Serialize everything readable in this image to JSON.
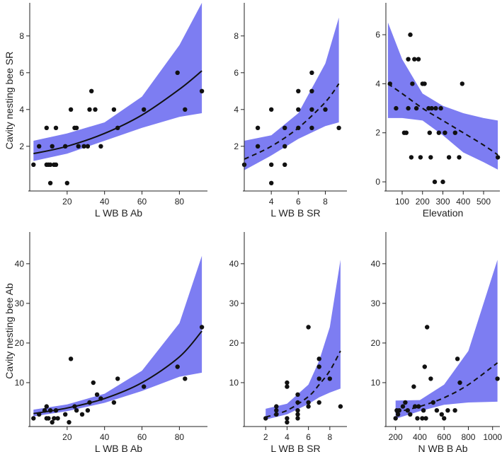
{
  "figure": {
    "row_labels": [
      "Cavity nesting bee SR",
      "Cavity nesting bee Ab"
    ]
  },
  "chart_data": [
    {
      "type": "scatter",
      "panel": "top-left",
      "xlabel": "L WB B Ab",
      "ylabel": "Cavity nesting bee SR",
      "xlim": [
        0,
        95
      ],
      "ylim": [
        -0.2,
        9.8
      ],
      "xticks": [
        20,
        40,
        60,
        80
      ],
      "yticks": [
        2,
        4,
        6,
        8
      ],
      "fit": {
        "style": "solid",
        "x": [
          2,
          20,
          40,
          60,
          80,
          92
        ],
        "y": [
          1.6,
          2.0,
          2.7,
          3.7,
          5.1,
          6.1
        ]
      },
      "band": {
        "x": [
          2,
          20,
          40,
          60,
          80,
          92
        ],
        "lower": [
          1.2,
          1.6,
          2.3,
          3.0,
          3.6,
          3.8
        ],
        "upper": [
          2.3,
          2.7,
          3.3,
          4.7,
          7.5,
          9.8
        ]
      },
      "points": [
        [
          2,
          1
        ],
        [
          5,
          2
        ],
        [
          9,
          3
        ],
        [
          9,
          1
        ],
        [
          10,
          1
        ],
        [
          11,
          0
        ],
        [
          11,
          1
        ],
        [
          12,
          2
        ],
        [
          13,
          1
        ],
        [
          14,
          1
        ],
        [
          14,
          3
        ],
        [
          19,
          2
        ],
        [
          20,
          0
        ],
        [
          22,
          4
        ],
        [
          24,
          3
        ],
        [
          25,
          3
        ],
        [
          26,
          2
        ],
        [
          29,
          2
        ],
        [
          31,
          2
        ],
        [
          32,
          4
        ],
        [
          33,
          5
        ],
        [
          35,
          4
        ],
        [
          38,
          2
        ],
        [
          45,
          4
        ],
        [
          47,
          3
        ],
        [
          61,
          4
        ],
        [
          79,
          6
        ],
        [
          83,
          4
        ],
        [
          92,
          5
        ]
      ]
    },
    {
      "type": "scatter",
      "panel": "top-middle",
      "xlabel": "L WB B SR",
      "ylabel": "",
      "xlim": [
        2,
        9.6
      ],
      "ylim": [
        -0.2,
        9.8
      ],
      "xticks": [
        4,
        6,
        8
      ],
      "yticks": [
        2,
        4,
        6,
        8
      ],
      "fit": {
        "style": "dashed",
        "x": [
          2,
          4,
          6,
          8,
          9
        ],
        "y": [
          1.3,
          2.0,
          3.0,
          4.4,
          5.4
        ]
      },
      "band": {
        "x": [
          2,
          4,
          6,
          8,
          9
        ],
        "lower": [
          0.7,
          1.5,
          2.4,
          3.1,
          3.3
        ],
        "upper": [
          2.3,
          2.6,
          3.8,
          6.5,
          9.0
        ]
      },
      "points": [
        [
          2,
          1
        ],
        [
          3,
          2
        ],
        [
          3,
          3
        ],
        [
          4,
          4
        ],
        [
          4,
          1
        ],
        [
          4,
          0
        ],
        [
          5,
          3
        ],
        [
          5,
          2
        ],
        [
          5,
          1
        ],
        [
          6,
          3
        ],
        [
          6,
          4
        ],
        [
          6,
          5
        ],
        [
          7,
          5
        ],
        [
          7,
          4
        ],
        [
          7,
          6
        ],
        [
          7,
          3
        ],
        [
          8,
          4
        ],
        [
          9,
          3
        ]
      ]
    },
    {
      "type": "scatter",
      "panel": "top-right",
      "xlabel": "Elevation",
      "ylabel": "",
      "xlim": [
        20,
        580
      ],
      "ylim": [
        -0.2,
        7.3
      ],
      "xticks": [
        100,
        200,
        300,
        400,
        500
      ],
      "yticks": [
        0,
        2,
        4,
        6
      ],
      "fit": {
        "style": "dashed",
        "x": [
          30,
          100,
          200,
          300,
          400,
          500,
          570
        ],
        "y": [
          4.0,
          3.6,
          3.0,
          2.5,
          2.0,
          1.5,
          1.1
        ]
      },
      "band": {
        "x": [
          30,
          100,
          200,
          300,
          400,
          500,
          570
        ],
        "lower": [
          2.6,
          2.6,
          2.5,
          1.9,
          1.2,
          0.8,
          0.5
        ],
        "upper": [
          6.5,
          5.0,
          3.6,
          3.1,
          2.8,
          2.6,
          2.5
        ]
      },
      "points": [
        [
          40,
          4
        ],
        [
          70,
          3
        ],
        [
          110,
          2
        ],
        [
          120,
          2
        ],
        [
          130,
          5
        ],
        [
          130,
          3
        ],
        [
          140,
          6
        ],
        [
          145,
          1
        ],
        [
          150,
          4
        ],
        [
          160,
          5
        ],
        [
          170,
          3
        ],
        [
          180,
          5
        ],
        [
          190,
          1
        ],
        [
          200,
          4
        ],
        [
          210,
          4
        ],
        [
          230,
          3
        ],
        [
          235,
          2
        ],
        [
          240,
          1
        ],
        [
          245,
          3
        ],
        [
          260,
          0
        ],
        [
          265,
          3
        ],
        [
          280,
          2
        ],
        [
          290,
          3
        ],
        [
          300,
          0
        ],
        [
          310,
          2
        ],
        [
          330,
          1
        ],
        [
          360,
          2
        ],
        [
          380,
          1
        ],
        [
          395,
          4
        ],
        [
          570,
          1
        ]
      ]
    },
    {
      "type": "scatter",
      "panel": "bottom-left",
      "xlabel": "L WB B Ab",
      "ylabel": "Cavity nesting bee Ab",
      "xlim": [
        0,
        95
      ],
      "ylim": [
        0,
        48
      ],
      "xticks": [
        20,
        40,
        60,
        80
      ],
      "yticks": [
        10,
        20,
        30,
        40
      ],
      "fit": {
        "style": "solid",
        "x": [
          2,
          20,
          40,
          60,
          80,
          92
        ],
        "y": [
          2.2,
          3.6,
          6.0,
          10.0,
          16.5,
          23.0
        ]
      },
      "band": {
        "x": [
          2,
          20,
          40,
          60,
          80,
          92
        ],
        "lower": [
          1.5,
          2.8,
          4.9,
          7.9,
          11.5,
          12.5
        ],
        "upper": [
          3.2,
          4.5,
          7.2,
          13.0,
          25.0,
          42.0
        ]
      },
      "points": [
        [
          2,
          1
        ],
        [
          5,
          2
        ],
        [
          8,
          3
        ],
        [
          9,
          4
        ],
        [
          9,
          1
        ],
        [
          10,
          1
        ],
        [
          11,
          3
        ],
        [
          12,
          0
        ],
        [
          13,
          1
        ],
        [
          14,
          3
        ],
        [
          15,
          1
        ],
        [
          19,
          2
        ],
        [
          21,
          0
        ],
        [
          22,
          16
        ],
        [
          24,
          4
        ],
        [
          25,
          3
        ],
        [
          28,
          2
        ],
        [
          31,
          3
        ],
        [
          32,
          5
        ],
        [
          34,
          10
        ],
        [
          36,
          7
        ],
        [
          38,
          6
        ],
        [
          45,
          5
        ],
        [
          47,
          11
        ],
        [
          61,
          9
        ],
        [
          79,
          14
        ],
        [
          83,
          11
        ],
        [
          92,
          24
        ]
      ]
    },
    {
      "type": "scatter",
      "panel": "bottom-middle",
      "xlabel": "L WB B SR",
      "ylabel": "",
      "xlim": [
        0,
        9.6
      ],
      "ylim": [
        0,
        48
      ],
      "xticks": [
        2,
        4,
        6,
        8
      ],
      "yticks": [
        10,
        20,
        30,
        40
      ],
      "fit": {
        "style": "dashed",
        "x": [
          2,
          4,
          6,
          7,
          8,
          9
        ],
        "y": [
          1.3,
          3.0,
          6.5,
          9.5,
          13.0,
          18.0
        ]
      },
      "band": {
        "x": [
          2,
          4,
          6,
          7,
          8,
          9
        ],
        "lower": [
          0.7,
          2.0,
          4.6,
          6.3,
          7.5,
          8.5
        ],
        "upper": [
          3.4,
          4.7,
          9.5,
          15.5,
          24.0,
          41.0
        ]
      },
      "points": [
        [
          2,
          1
        ],
        [
          3,
          2
        ],
        [
          3,
          3
        ],
        [
          3,
          4
        ],
        [
          4,
          10
        ],
        [
          4,
          9
        ],
        [
          4,
          1
        ],
        [
          4,
          0
        ],
        [
          5,
          5
        ],
        [
          5,
          3
        ],
        [
          5,
          2
        ],
        [
          5,
          1
        ],
        [
          5,
          7
        ],
        [
          6,
          24
        ],
        [
          6,
          5
        ],
        [
          6,
          4
        ],
        [
          7,
          16
        ],
        [
          7,
          14
        ],
        [
          7,
          11
        ],
        [
          7,
          5
        ],
        [
          8,
          11
        ],
        [
          9,
          4
        ]
      ]
    },
    {
      "type": "scatter",
      "panel": "bottom-right",
      "xlabel": "N WB B Ab",
      "ylabel": "",
      "xlim": [
        120,
        1060
      ],
      "ylim": [
        0,
        48
      ],
      "xticks": [
        200,
        400,
        600,
        800,
        1000
      ],
      "yticks": [
        10,
        20,
        30,
        40
      ],
      "fit": {
        "style": "dashed",
        "x": [
          200,
          400,
          600,
          800,
          1040
        ],
        "y": [
          2.5,
          4.0,
          6.2,
          9.5,
          15.0
        ]
      },
      "band": {
        "x": [
          200,
          400,
          600,
          800,
          1040
        ],
        "lower": [
          0.9,
          2.8,
          4.4,
          5.0,
          5.2
        ],
        "upper": [
          5.5,
          5.6,
          9.5,
          18.0,
          41.0
        ]
      },
      "points": [
        [
          200,
          1
        ],
        [
          210,
          3
        ],
        [
          220,
          2
        ],
        [
          230,
          3
        ],
        [
          260,
          4
        ],
        [
          280,
          5
        ],
        [
          300,
          3
        ],
        [
          320,
          2
        ],
        [
          350,
          9
        ],
        [
          360,
          4
        ],
        [
          380,
          1
        ],
        [
          390,
          4
        ],
        [
          420,
          1
        ],
        [
          430,
          3
        ],
        [
          440,
          14
        ],
        [
          450,
          1
        ],
        [
          460,
          24
        ],
        [
          490,
          11
        ],
        [
          510,
          5
        ],
        [
          540,
          3
        ],
        [
          580,
          2
        ],
        [
          600,
          1
        ],
        [
          630,
          3
        ],
        [
          690,
          3
        ],
        [
          710,
          16
        ],
        [
          730,
          10
        ],
        [
          1040,
          11
        ]
      ]
    }
  ]
}
